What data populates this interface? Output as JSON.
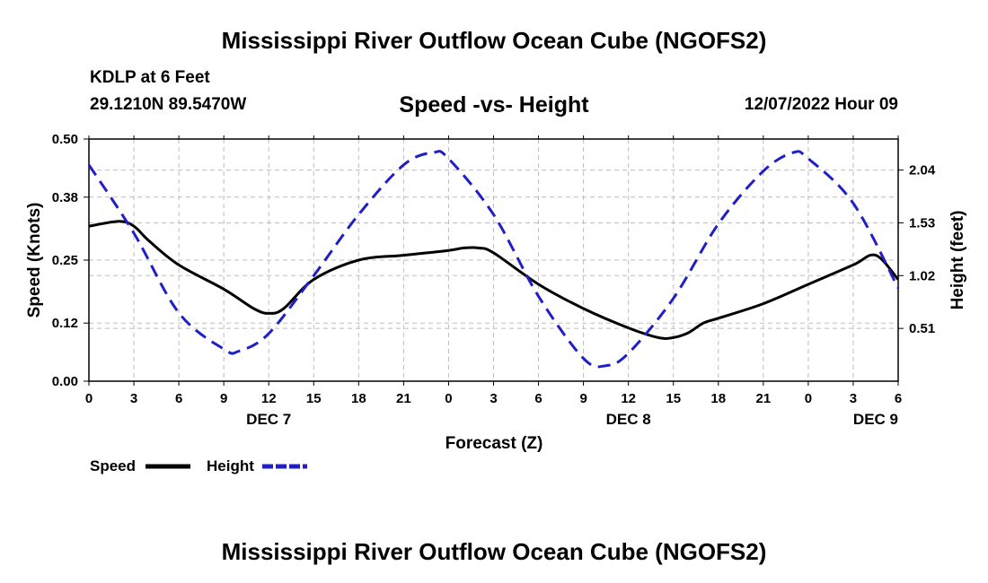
{
  "page": {
    "title": "Mississippi River Outflow Ocean Cube (NGOFS2)",
    "footer_title": "Mississippi River Outflow Ocean Cube (NGOFS2)",
    "station_line": "KDLP at 6 Feet",
    "coords": "29.1210N  89.5470W",
    "timestamp": "12/07/2022 Hour 09"
  },
  "colors": {
    "speed": "#000000",
    "height": "#1f1fc8",
    "grid": "#bdbdbd"
  },
  "chart_data": {
    "type": "line",
    "title": "Speed -vs- Height",
    "xlabel": "Forecast (Z)",
    "ylabel": "Speed (Knots)",
    "y2label": "Height (feet)",
    "xlim": [
      0,
      54
    ],
    "ylim": [
      0,
      0.5
    ],
    "y2lim": [
      0,
      2.34
    ],
    "yticks": [
      0.0,
      0.12,
      0.25,
      0.38,
      0.5
    ],
    "ytick_labels": [
      "0.00",
      "0.12",
      "0.25",
      "0.38",
      "0.50"
    ],
    "y2ticks": [
      0.51,
      1.02,
      1.53,
      2.04
    ],
    "y2tick_labels": [
      "0.51",
      "1.02",
      "1.53",
      "2.04"
    ],
    "xtick_labels": [
      "0",
      "3",
      "6",
      "9",
      "12",
      "15",
      "18",
      "21",
      "0",
      "3",
      "6",
      "9",
      "12",
      "15",
      "18",
      "21",
      "0",
      "3",
      "6"
    ],
    "day_labels": [
      {
        "label": "DEC 7",
        "x": 12
      },
      {
        "label": "DEC 8",
        "x": 36
      },
      {
        "label": "DEC 9",
        "x": 52.5
      }
    ],
    "grid": true,
    "legend": [
      {
        "label": "Speed",
        "series": "speed"
      },
      {
        "label": "Height",
        "series": "height"
      }
    ],
    "series": [
      {
        "name": "Speed",
        "axis": "left",
        "style": "solid",
        "x": [
          0,
          2,
          3,
          4,
          6,
          9,
          11,
          12,
          13,
          15,
          18,
          21,
          24,
          25,
          26,
          27,
          30,
          33,
          36,
          38,
          39,
          40,
          41,
          42,
          45,
          48,
          51,
          52.5,
          54
        ],
        "y": [
          0.32,
          0.33,
          0.32,
          0.29,
          0.24,
          0.19,
          0.15,
          0.14,
          0.15,
          0.21,
          0.25,
          0.26,
          0.27,
          0.275,
          0.275,
          0.265,
          0.2,
          0.15,
          0.11,
          0.09,
          0.09,
          0.1,
          0.12,
          0.13,
          0.16,
          0.2,
          0.24,
          0.26,
          0.21
        ]
      },
      {
        "name": "Height",
        "axis": "right",
        "style": "dashed",
        "x": [
          0,
          3,
          6,
          9,
          10,
          12,
          15,
          18,
          21,
          23,
          24,
          27,
          30,
          33,
          34.5,
          36,
          39,
          42,
          45,
          47,
          48,
          51,
          54
        ],
        "y": [
          2.09,
          1.43,
          0.66,
          0.31,
          0.29,
          0.46,
          1.02,
          1.61,
          2.09,
          2.21,
          2.15,
          1.61,
          0.82,
          0.22,
          0.15,
          0.27,
          0.8,
          1.52,
          2.03,
          2.21,
          2.15,
          1.72,
          0.9
        ]
      }
    ]
  }
}
